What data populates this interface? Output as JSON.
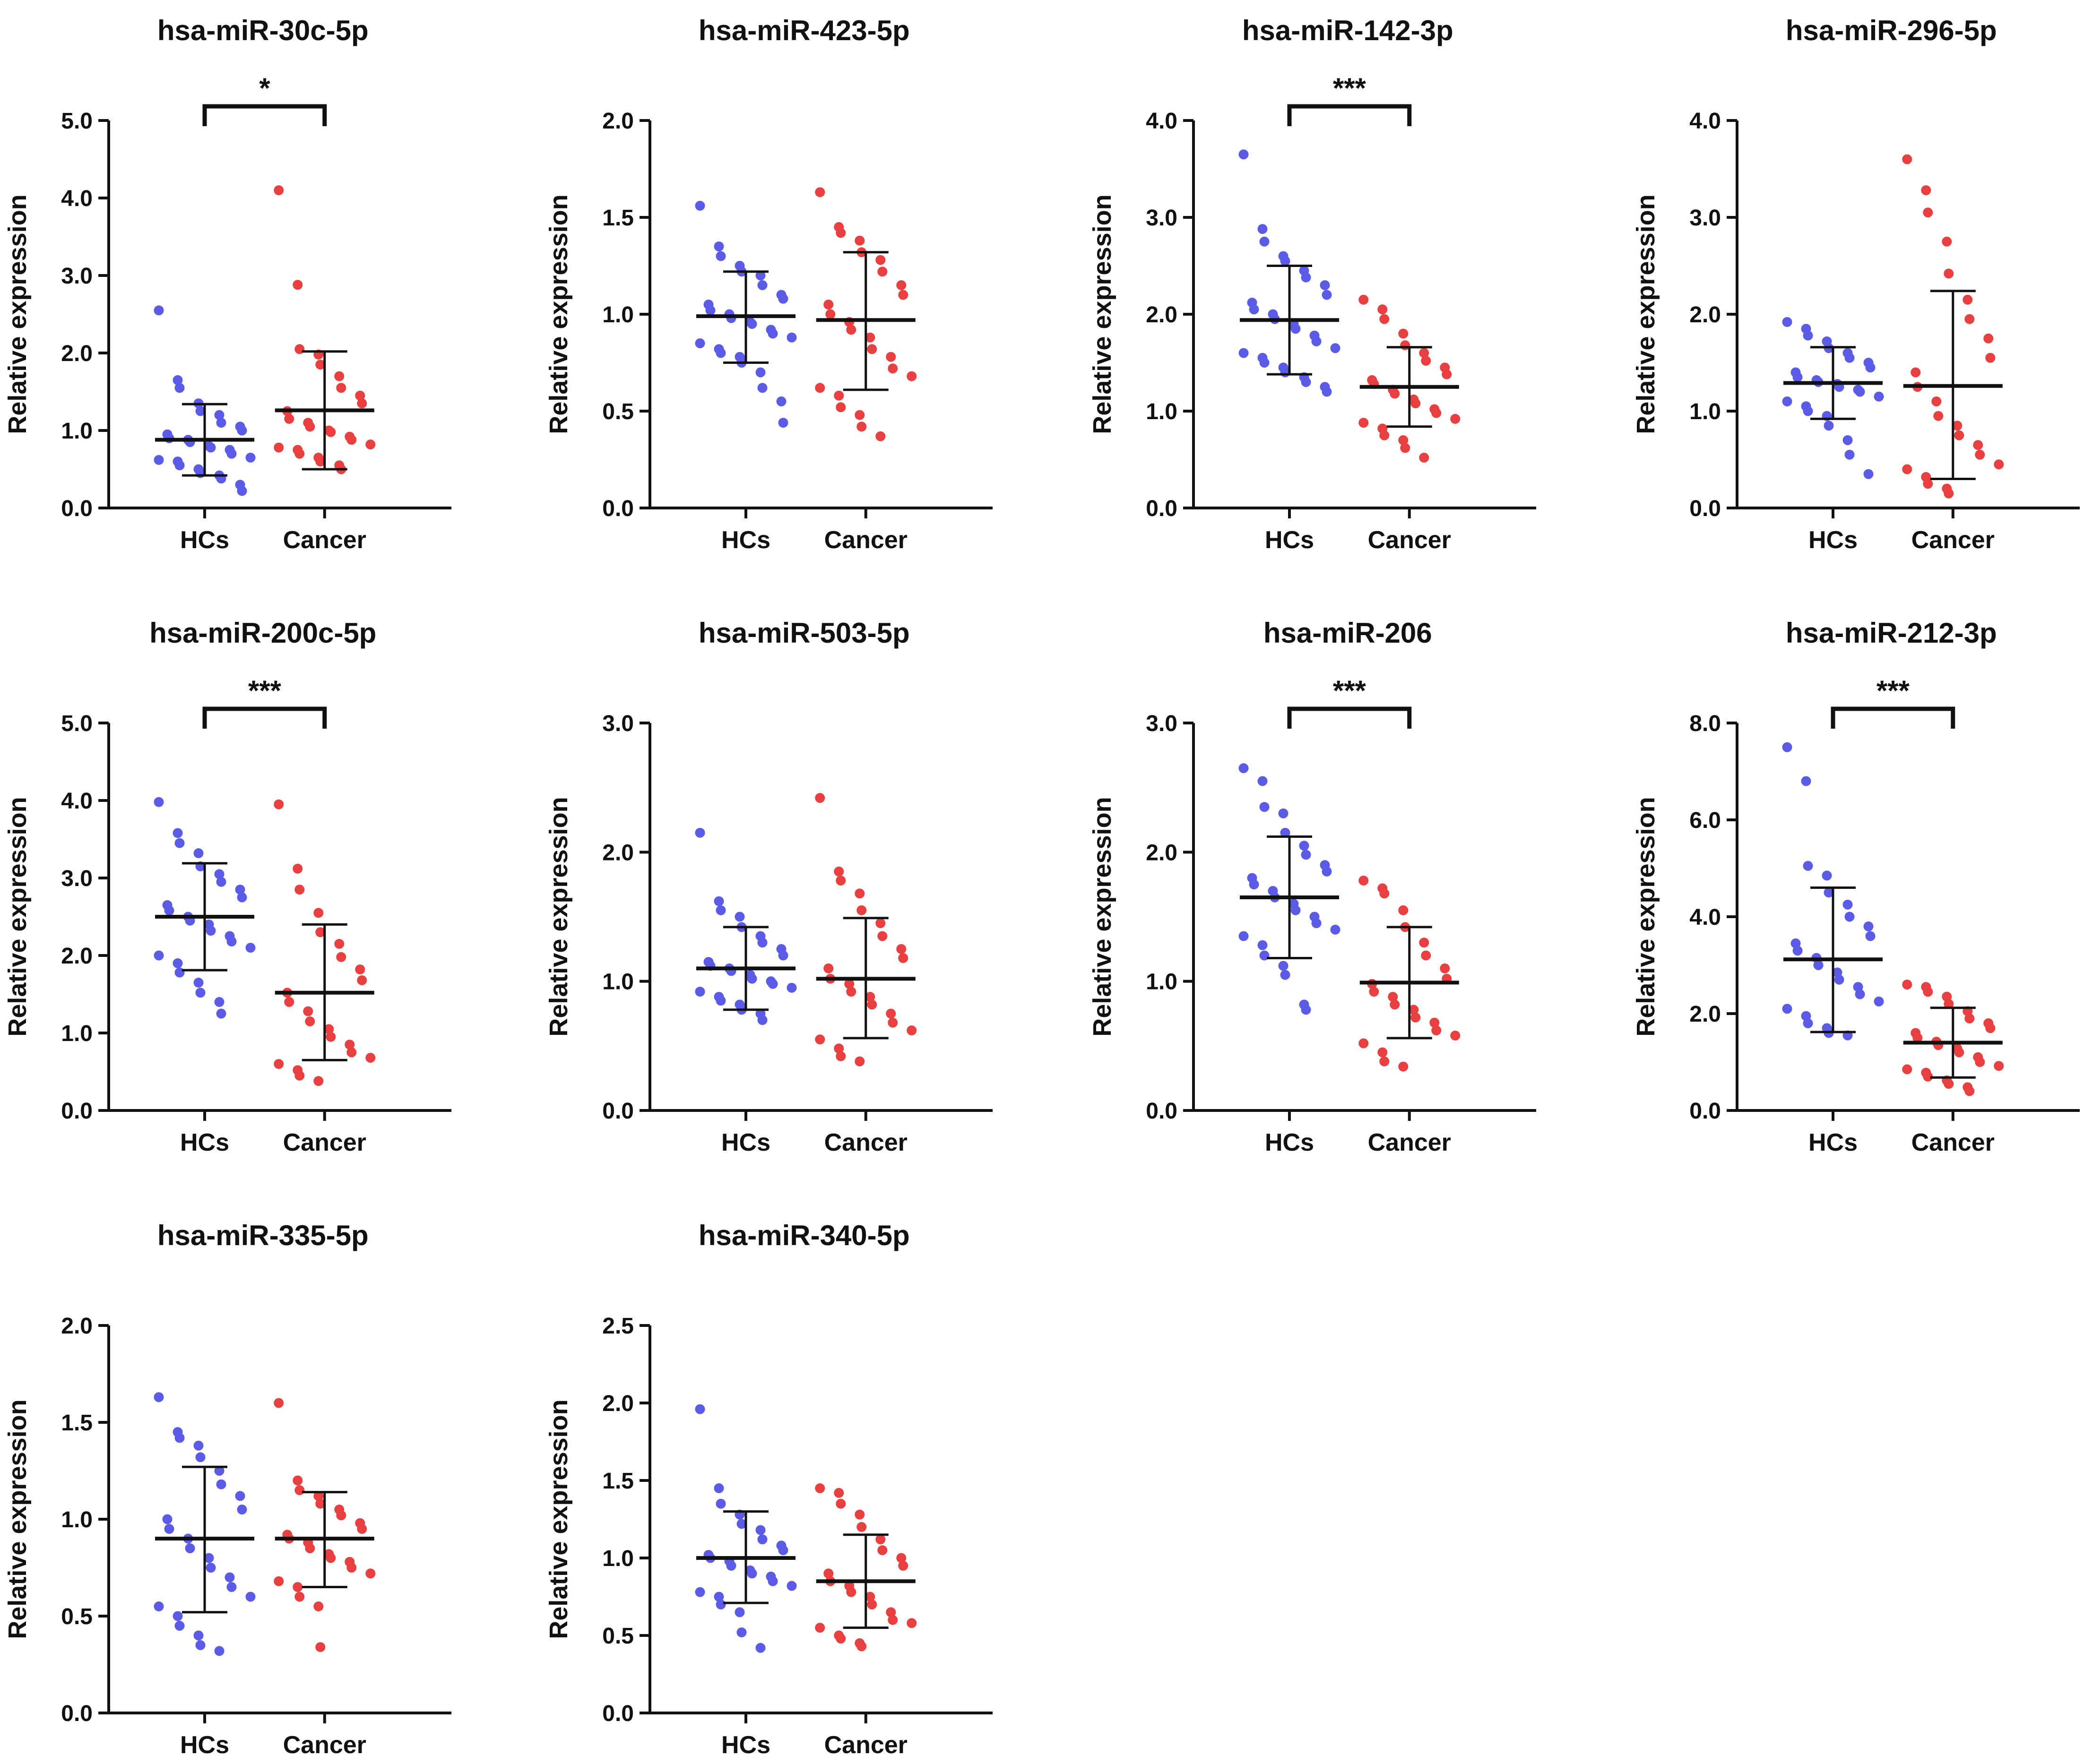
{
  "chart_data": [
    {
      "type": "scatter",
      "title": "hsa-miR-30c-5p",
      "ylabel": "Relative expression",
      "categories": [
        "HCs",
        "Cancer"
      ],
      "ylim": [
        0,
        5
      ],
      "yticks": [
        "0.0",
        "1.0",
        "2.0",
        "3.0",
        "4.0",
        "5.0"
      ],
      "significance": "*",
      "series": [
        {
          "name": "HCs",
          "color": "#5b5be6",
          "mean": 0.88,
          "sd_low": 0.42,
          "sd_high": 1.34,
          "values": [
            2.55,
            1.65,
            1.55,
            1.35,
            1.25,
            1.2,
            1.1,
            1.05,
            1.0,
            0.95,
            0.9,
            0.88,
            0.85,
            0.8,
            0.78,
            0.75,
            0.7,
            0.65,
            0.62,
            0.6,
            0.55,
            0.5,
            0.45,
            0.42,
            0.38,
            0.3,
            0.22
          ]
        },
        {
          "name": "Cancer",
          "color": "#e84040",
          "mean": 1.26,
          "sd_low": 0.5,
          "sd_high": 2.02,
          "values": [
            4.1,
            2.88,
            2.05,
            1.98,
            1.85,
            1.7,
            1.55,
            1.45,
            1.35,
            1.25,
            1.15,
            1.1,
            1.05,
            1.0,
            0.98,
            0.92,
            0.88,
            0.82,
            0.78,
            0.75,
            0.7,
            0.65,
            0.6,
            0.55,
            0.5
          ]
        }
      ]
    },
    {
      "type": "scatter",
      "title": "hsa-miR-423-5p",
      "ylabel": "Relative expression",
      "categories": [
        "HCs",
        "Cancer"
      ],
      "ylim": [
        0,
        2
      ],
      "yticks": [
        "0.0",
        "0.5",
        "1.0",
        "1.5",
        "2.0"
      ],
      "significance": "",
      "series": [
        {
          "name": "HCs",
          "color": "#5b5be6",
          "mean": 0.99,
          "sd_low": 0.75,
          "sd_high": 1.22,
          "values": [
            1.56,
            1.35,
            1.3,
            1.25,
            1.22,
            1.2,
            1.15,
            1.1,
            1.08,
            1.05,
            1.02,
            1.0,
            0.98,
            0.96,
            0.95,
            0.92,
            0.9,
            0.88,
            0.85,
            0.82,
            0.8,
            0.78,
            0.75,
            0.7,
            0.62,
            0.55,
            0.44
          ]
        },
        {
          "name": "Cancer",
          "color": "#e84040",
          "mean": 0.97,
          "sd_low": 0.61,
          "sd_high": 1.32,
          "values": [
            1.63,
            1.45,
            1.42,
            1.38,
            1.32,
            1.28,
            1.22,
            1.15,
            1.1,
            1.05,
            1.0,
            0.96,
            0.92,
            0.88,
            0.82,
            0.78,
            0.72,
            0.68,
            0.62,
            0.58,
            0.52,
            0.48,
            0.42,
            0.37
          ]
        }
      ]
    },
    {
      "type": "scatter",
      "title": "hsa-miR-142-3p",
      "ylabel": "Relative expression",
      "categories": [
        "HCs",
        "Cancer"
      ],
      "ylim": [
        0,
        4
      ],
      "yticks": [
        "0.0",
        "1.0",
        "2.0",
        "3.0",
        "4.0"
      ],
      "significance": "***",
      "series": [
        {
          "name": "HCs",
          "color": "#5b5be6",
          "mean": 1.94,
          "sd_low": 1.38,
          "sd_high": 2.5,
          "values": [
            3.65,
            2.88,
            2.75,
            2.6,
            2.55,
            2.45,
            2.38,
            2.3,
            2.2,
            2.12,
            2.05,
            2.0,
            1.95,
            1.9,
            1.85,
            1.78,
            1.72,
            1.65,
            1.6,
            1.55,
            1.5,
            1.45,
            1.4,
            1.35,
            1.3,
            1.25,
            1.2
          ]
        },
        {
          "name": "Cancer",
          "color": "#e84040",
          "mean": 1.25,
          "sd_low": 0.84,
          "sd_high": 1.66,
          "values": [
            2.15,
            2.05,
            1.95,
            1.8,
            1.68,
            1.6,
            1.52,
            1.45,
            1.38,
            1.32,
            1.28,
            1.22,
            1.18,
            1.12,
            1.08,
            1.02,
            0.98,
            0.92,
            0.88,
            0.82,
            0.75,
            0.7,
            0.62,
            0.52
          ]
        }
      ]
    },
    {
      "type": "scatter",
      "title": "hsa-miR-296-5p",
      "ylabel": "Relative expression",
      "categories": [
        "HCs",
        "Cancer"
      ],
      "ylim": [
        0,
        4
      ],
      "yticks": [
        "0.0",
        "1.0",
        "2.0",
        "3.0",
        "4.0"
      ],
      "significance": "",
      "series": [
        {
          "name": "HCs",
          "color": "#5b5be6",
          "mean": 1.29,
          "sd_low": 0.92,
          "sd_high": 1.66,
          "values": [
            1.92,
            1.85,
            1.78,
            1.72,
            1.65,
            1.6,
            1.55,
            1.5,
            1.45,
            1.4,
            1.35,
            1.32,
            1.3,
            1.28,
            1.25,
            1.22,
            1.2,
            1.15,
            1.1,
            1.05,
            1.0,
            0.95,
            0.85,
            0.7,
            0.55,
            0.35
          ]
        },
        {
          "name": "Cancer",
          "color": "#e84040",
          "mean": 1.26,
          "sd_low": 0.3,
          "sd_high": 2.24,
          "values": [
            3.6,
            3.28,
            3.05,
            2.75,
            2.42,
            2.15,
            1.95,
            1.75,
            1.55,
            1.4,
            1.25,
            1.1,
            0.95,
            0.85,
            0.75,
            0.65,
            0.55,
            0.45,
            0.4,
            0.32,
            0.25,
            0.2,
            0.15
          ]
        }
      ]
    },
    {
      "type": "scatter",
      "title": "hsa-miR-200c-5p",
      "ylabel": "Relative expression",
      "categories": [
        "HCs",
        "Cancer"
      ],
      "ylim": [
        0,
        5
      ],
      "yticks": [
        "0.0",
        "1.0",
        "2.0",
        "3.0",
        "4.0",
        "5.0"
      ],
      "significance": "***",
      "series": [
        {
          "name": "HCs",
          "color": "#5b5be6",
          "mean": 2.5,
          "sd_low": 1.81,
          "sd_high": 3.19,
          "values": [
            3.98,
            3.58,
            3.45,
            3.32,
            3.15,
            3.05,
            2.95,
            2.85,
            2.75,
            2.65,
            2.58,
            2.5,
            2.45,
            2.4,
            2.32,
            2.25,
            2.18,
            2.1,
            2.0,
            1.9,
            1.78,
            1.65,
            1.52,
            1.4,
            1.25
          ]
        },
        {
          "name": "Cancer",
          "color": "#e84040",
          "mean": 1.52,
          "sd_low": 0.65,
          "sd_high": 2.4,
          "values": [
            3.95,
            3.12,
            2.85,
            2.55,
            2.3,
            2.15,
            1.98,
            1.82,
            1.68,
            1.52,
            1.4,
            1.28,
            1.15,
            1.05,
            0.95,
            0.85,
            0.75,
            0.68,
            0.6,
            0.52,
            0.45,
            0.38
          ]
        }
      ]
    },
    {
      "type": "scatter",
      "title": "hsa-miR-503-5p",
      "ylabel": "Relative expression",
      "categories": [
        "HCs",
        "Cancer"
      ],
      "ylim": [
        0,
        3
      ],
      "yticks": [
        "0.0",
        "1.0",
        "2.0",
        "3.0"
      ],
      "significance": "",
      "series": [
        {
          "name": "HCs",
          "color": "#5b5be6",
          "mean": 1.1,
          "sd_low": 0.78,
          "sd_high": 1.42,
          "values": [
            2.15,
            1.62,
            1.55,
            1.5,
            1.42,
            1.35,
            1.3,
            1.25,
            1.2,
            1.15,
            1.12,
            1.1,
            1.08,
            1.05,
            1.02,
            1.0,
            0.98,
            0.95,
            0.92,
            0.88,
            0.85,
            0.82,
            0.78,
            0.75,
            0.7
          ]
        },
        {
          "name": "Cancer",
          "color": "#e84040",
          "mean": 1.02,
          "sd_low": 0.56,
          "sd_high": 1.49,
          "values": [
            2.42,
            1.85,
            1.78,
            1.68,
            1.55,
            1.45,
            1.35,
            1.25,
            1.18,
            1.1,
            1.02,
            0.98,
            0.92,
            0.88,
            0.82,
            0.75,
            0.68,
            0.62,
            0.55,
            0.48,
            0.42,
            0.38
          ]
        }
      ]
    },
    {
      "type": "scatter",
      "title": "hsa-miR-206",
      "ylabel": "Relative expression",
      "categories": [
        "HCs",
        "Cancer"
      ],
      "ylim": [
        0,
        3
      ],
      "yticks": [
        "0.0",
        "1.0",
        "2.0",
        "3.0"
      ],
      "significance": "***",
      "series": [
        {
          "name": "HCs",
          "color": "#5b5be6",
          "mean": 1.65,
          "sd_low": 1.18,
          "sd_high": 2.12,
          "values": [
            2.65,
            2.55,
            2.35,
            2.3,
            2.15,
            2.05,
            1.98,
            1.9,
            1.85,
            1.8,
            1.75,
            1.7,
            1.65,
            1.6,
            1.55,
            1.5,
            1.45,
            1.4,
            1.35,
            1.28,
            1.2,
            1.12,
            1.05,
            0.82,
            0.78
          ]
        },
        {
          "name": "Cancer",
          "color": "#e84040",
          "mean": 0.99,
          "sd_low": 0.56,
          "sd_high": 1.42,
          "values": [
            1.78,
            1.72,
            1.68,
            1.55,
            1.42,
            1.3,
            1.2,
            1.1,
            1.02,
            0.98,
            0.92,
            0.88,
            0.82,
            0.78,
            0.72,
            0.68,
            0.62,
            0.58,
            0.52,
            0.45,
            0.38,
            0.34
          ]
        }
      ]
    },
    {
      "type": "scatter",
      "title": "hsa-miR-212-3p",
      "ylabel": "Relative expression",
      "categories": [
        "HCs",
        "Cancer"
      ],
      "ylim": [
        0,
        8
      ],
      "yticks": [
        "0.0",
        "2.0",
        "4.0",
        "6.0",
        "8.0"
      ],
      "significance": "***",
      "series": [
        {
          "name": "HCs",
          "color": "#5b5be6",
          "mean": 3.12,
          "sd_low": 1.62,
          "sd_high": 4.6,
          "values": [
            7.5,
            6.8,
            5.05,
            4.85,
            4.5,
            4.25,
            4.0,
            3.8,
            3.6,
            3.45,
            3.3,
            3.15,
            3.0,
            2.85,
            2.7,
            2.55,
            2.4,
            2.25,
            2.1,
            1.95,
            1.8,
            1.7,
            1.6,
            1.55
          ]
        },
        {
          "name": "Cancer",
          "color": "#e84040",
          "mean": 1.4,
          "sd_low": 0.68,
          "sd_high": 2.12,
          "values": [
            2.6,
            2.55,
            2.45,
            2.35,
            2.2,
            2.05,
            1.9,
            1.8,
            1.7,
            1.6,
            1.5,
            1.42,
            1.35,
            1.28,
            1.2,
            1.1,
            1.0,
            0.92,
            0.85,
            0.78,
            0.7,
            0.62,
            0.55,
            0.48,
            0.4
          ]
        }
      ]
    },
    {
      "type": "scatter",
      "title": "hsa-miR-335-5p",
      "ylabel": "Relative expression",
      "categories": [
        "HCs",
        "Cancer"
      ],
      "ylim": [
        0,
        2
      ],
      "yticks": [
        "0.0",
        "0.5",
        "1.0",
        "1.5",
        "2.0"
      ],
      "significance": "",
      "series": [
        {
          "name": "HCs",
          "color": "#5b5be6",
          "mean": 0.9,
          "sd_low": 0.52,
          "sd_high": 1.27,
          "values": [
            1.63,
            1.45,
            1.42,
            1.38,
            1.32,
            1.25,
            1.18,
            1.12,
            1.05,
            1.0,
            0.95,
            0.9,
            0.85,
            0.8,
            0.75,
            0.7,
            0.65,
            0.6,
            0.55,
            0.5,
            0.45,
            0.4,
            0.35,
            0.32
          ]
        },
        {
          "name": "Cancer",
          "color": "#e84040",
          "mean": 0.9,
          "sd_low": 0.65,
          "sd_high": 1.14,
          "values": [
            1.6,
            1.2,
            1.15,
            1.12,
            1.08,
            1.05,
            1.02,
            0.98,
            0.95,
            0.92,
            0.9,
            0.88,
            0.85,
            0.82,
            0.8,
            0.78,
            0.75,
            0.72,
            0.68,
            0.65,
            0.6,
            0.55,
            0.34
          ]
        }
      ]
    },
    {
      "type": "scatter",
      "title": "hsa-miR-340-5p",
      "ylabel": "Relative expression",
      "categories": [
        "HCs",
        "Cancer"
      ],
      "ylim": [
        0,
        2.5
      ],
      "yticks": [
        "0.0",
        "0.5",
        "1.0",
        "1.5",
        "2.0",
        "2.5"
      ],
      "significance": "",
      "series": [
        {
          "name": "HCs",
          "color": "#5b5be6",
          "mean": 1.0,
          "sd_low": 0.71,
          "sd_high": 1.3,
          "values": [
            1.96,
            1.45,
            1.35,
            1.28,
            1.22,
            1.18,
            1.12,
            1.08,
            1.05,
            1.02,
            1.0,
            0.98,
            0.95,
            0.92,
            0.9,
            0.88,
            0.85,
            0.82,
            0.78,
            0.75,
            0.7,
            0.65,
            0.52,
            0.42
          ]
        },
        {
          "name": "Cancer",
          "color": "#e84040",
          "mean": 0.85,
          "sd_low": 0.55,
          "sd_high": 1.15,
          "values": [
            1.45,
            1.42,
            1.35,
            1.28,
            1.2,
            1.12,
            1.05,
            1.0,
            0.95,
            0.9,
            0.85,
            0.82,
            0.78,
            0.75,
            0.7,
            0.65,
            0.6,
            0.58,
            0.55,
            0.5,
            0.48,
            0.45,
            0.43
          ]
        }
      ]
    }
  ]
}
